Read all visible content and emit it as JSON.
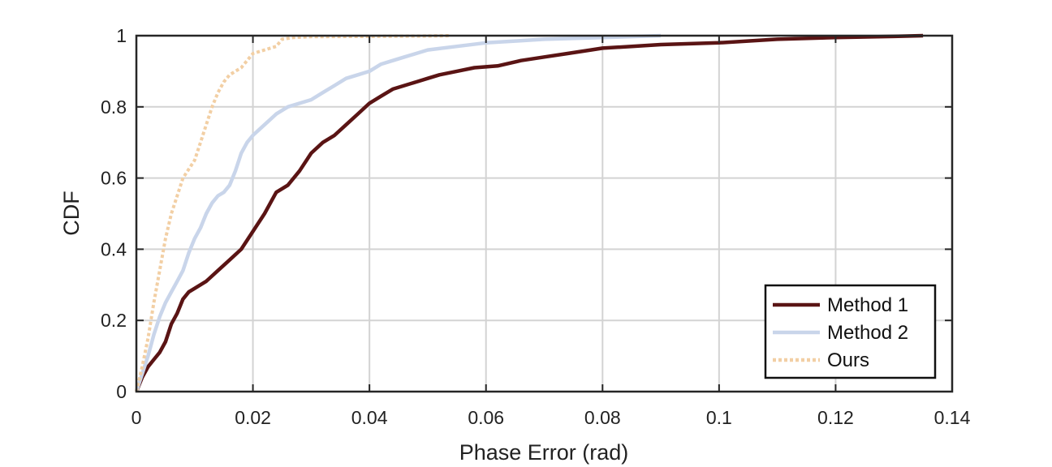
{
  "chart_data": {
    "type": "line",
    "title": "",
    "xlabel": "Phase Error (rad)",
    "ylabel": "CDF",
    "xlim": [
      0,
      0.14
    ],
    "ylim": [
      0,
      1
    ],
    "xticks": [
      0,
      0.02,
      0.04,
      0.06,
      0.08,
      0.1,
      0.12,
      0.14
    ],
    "xtick_labels": [
      "0",
      "0.02",
      "0.04",
      "0.06",
      "0.08",
      "0.1",
      "0.12",
      "0.14"
    ],
    "yticks": [
      0,
      0.2,
      0.4,
      0.6,
      0.8,
      1
    ],
    "ytick_labels": [
      "0",
      "0.2",
      "0.4",
      "0.6",
      "0.8",
      "1"
    ],
    "grid": true,
    "legend_position": "bottom-right",
    "series": [
      {
        "name": "Method 1",
        "color": "#5a1414",
        "style": "solid",
        "points": [
          [
            0,
            0
          ],
          [
            0.001,
            0.04
          ],
          [
            0.002,
            0.07
          ],
          [
            0.003,
            0.09
          ],
          [
            0.004,
            0.11
          ],
          [
            0.005,
            0.14
          ],
          [
            0.006,
            0.19
          ],
          [
            0.007,
            0.22
          ],
          [
            0.008,
            0.26
          ],
          [
            0.009,
            0.28
          ],
          [
            0.01,
            0.29
          ],
          [
            0.012,
            0.31
          ],
          [
            0.014,
            0.34
          ],
          [
            0.016,
            0.37
          ],
          [
            0.018,
            0.4
          ],
          [
            0.02,
            0.45
          ],
          [
            0.022,
            0.5
          ],
          [
            0.024,
            0.56
          ],
          [
            0.026,
            0.58
          ],
          [
            0.028,
            0.62
          ],
          [
            0.03,
            0.67
          ],
          [
            0.032,
            0.7
          ],
          [
            0.034,
            0.72
          ],
          [
            0.036,
            0.75
          ],
          [
            0.038,
            0.78
          ],
          [
            0.04,
            0.81
          ],
          [
            0.042,
            0.83
          ],
          [
            0.044,
            0.85
          ],
          [
            0.046,
            0.86
          ],
          [
            0.048,
            0.87
          ],
          [
            0.05,
            0.88
          ],
          [
            0.052,
            0.89
          ],
          [
            0.055,
            0.9
          ],
          [
            0.058,
            0.91
          ],
          [
            0.062,
            0.915
          ],
          [
            0.066,
            0.93
          ],
          [
            0.07,
            0.94
          ],
          [
            0.074,
            0.95
          ],
          [
            0.078,
            0.96
          ],
          [
            0.08,
            0.965
          ],
          [
            0.085,
            0.97
          ],
          [
            0.09,
            0.975
          ],
          [
            0.1,
            0.98
          ],
          [
            0.11,
            0.99
          ],
          [
            0.12,
            0.995
          ],
          [
            0.13,
            0.998
          ],
          [
            0.135,
            1
          ]
        ]
      },
      {
        "name": "Method 2",
        "color": "#c9d5ea",
        "style": "solid",
        "points": [
          [
            0,
            0
          ],
          [
            0.001,
            0.05
          ],
          [
            0.002,
            0.1
          ],
          [
            0.003,
            0.16
          ],
          [
            0.004,
            0.21
          ],
          [
            0.005,
            0.25
          ],
          [
            0.006,
            0.28
          ],
          [
            0.007,
            0.31
          ],
          [
            0.008,
            0.34
          ],
          [
            0.009,
            0.39
          ],
          [
            0.01,
            0.43
          ],
          [
            0.011,
            0.46
          ],
          [
            0.012,
            0.5
          ],
          [
            0.013,
            0.53
          ],
          [
            0.014,
            0.55
          ],
          [
            0.015,
            0.56
          ],
          [
            0.016,
            0.58
          ],
          [
            0.017,
            0.62
          ],
          [
            0.018,
            0.67
          ],
          [
            0.019,
            0.7
          ],
          [
            0.02,
            0.72
          ],
          [
            0.022,
            0.75
          ],
          [
            0.024,
            0.78
          ],
          [
            0.026,
            0.8
          ],
          [
            0.028,
            0.81
          ],
          [
            0.03,
            0.82
          ],
          [
            0.032,
            0.84
          ],
          [
            0.034,
            0.86
          ],
          [
            0.036,
            0.88
          ],
          [
            0.038,
            0.89
          ],
          [
            0.04,
            0.9
          ],
          [
            0.042,
            0.92
          ],
          [
            0.044,
            0.93
          ],
          [
            0.046,
            0.94
          ],
          [
            0.048,
            0.95
          ],
          [
            0.05,
            0.96
          ],
          [
            0.055,
            0.97
          ],
          [
            0.06,
            0.98
          ],
          [
            0.065,
            0.985
          ],
          [
            0.07,
            0.99
          ],
          [
            0.08,
            0.995
          ],
          [
            0.09,
            1
          ]
        ]
      },
      {
        "name": "Ours",
        "color": "#f2cfa4",
        "style": "dotted",
        "points": [
          [
            0,
            0
          ],
          [
            0.001,
            0.07
          ],
          [
            0.002,
            0.15
          ],
          [
            0.003,
            0.25
          ],
          [
            0.004,
            0.34
          ],
          [
            0.005,
            0.43
          ],
          [
            0.006,
            0.5
          ],
          [
            0.007,
            0.55
          ],
          [
            0.008,
            0.6
          ],
          [
            0.01,
            0.65
          ],
          [
            0.011,
            0.7
          ],
          [
            0.012,
            0.75
          ],
          [
            0.013,
            0.8
          ],
          [
            0.014,
            0.84
          ],
          [
            0.015,
            0.87
          ],
          [
            0.016,
            0.89
          ],
          [
            0.017,
            0.9
          ],
          [
            0.018,
            0.91
          ],
          [
            0.019,
            0.93
          ],
          [
            0.02,
            0.95
          ],
          [
            0.022,
            0.96
          ],
          [
            0.024,
            0.97
          ],
          [
            0.025,
            0.99
          ],
          [
            0.027,
            0.995
          ],
          [
            0.03,
            0.997
          ],
          [
            0.04,
            0.998
          ],
          [
            0.05,
            0.999
          ],
          [
            0.054,
            1
          ]
        ]
      }
    ]
  }
}
